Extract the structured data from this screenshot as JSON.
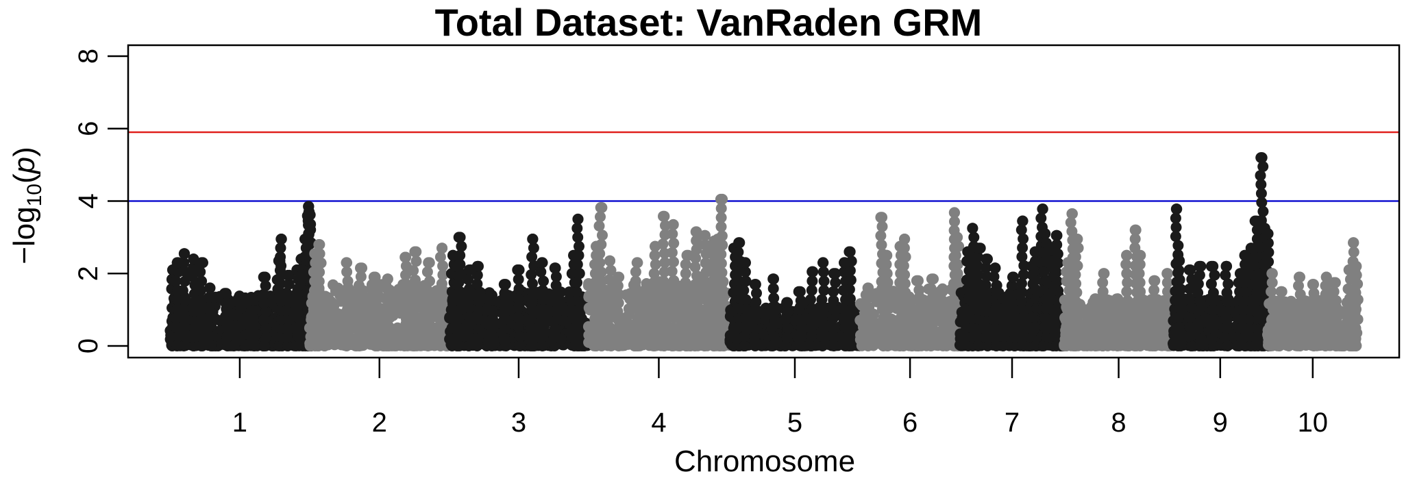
{
  "chart_data": {
    "type": "scatter",
    "title": "Total Dataset: VanRaden GRM",
    "xlabel": "Chromosome",
    "ylabel_prefix": "−log",
    "ylabel_sub": "10",
    "ylabel_var": "p",
    "ylim": [
      0,
      8
    ],
    "yticks": [
      "0",
      "2",
      "4",
      "6",
      "8"
    ],
    "grid": false,
    "legend": "none",
    "thresholds": [
      {
        "value": 5.9,
        "color": "#e0201b"
      },
      {
        "value": 4.0,
        "color": "#1010d0"
      }
    ],
    "chromosomes": [
      {
        "label": "1",
        "color": "#1a1a1a",
        "start": 0.0,
        "end": 15.4,
        "baseline": 1.4,
        "peaks": [
          [
            0.3,
            2.1
          ],
          [
            0.8,
            2.3
          ],
          [
            1.6,
            2.55
          ],
          [
            2.6,
            2.4
          ],
          [
            3.5,
            2.3
          ],
          [
            4.4,
            1.6
          ],
          [
            6.2,
            1.45
          ],
          [
            7.2,
            0.85
          ],
          [
            9.3,
            1.25
          ],
          [
            10.5,
            1.9
          ],
          [
            12.0,
            2.35
          ],
          [
            12.3,
            2.95
          ],
          [
            13.0,
            1.95
          ],
          [
            14.0,
            2.1
          ],
          [
            14.5,
            2.4
          ],
          [
            15.0,
            2.95
          ],
          [
            15.3,
            3.85
          ],
          [
            15.35,
            3.7
          ],
          [
            15.4,
            3.62
          ]
        ]
      },
      {
        "label": "2",
        "color": "#808080",
        "start": 15.4,
        "end": 30.8,
        "baseline": 1.7,
        "peaks": [
          [
            16.0,
            2.55
          ],
          [
            16.5,
            2.8
          ],
          [
            19.5,
            2.3
          ],
          [
            21.0,
            2.15
          ],
          [
            22.5,
            1.9
          ],
          [
            24.0,
            1.85
          ],
          [
            26.0,
            2.45
          ],
          [
            27.0,
            2.6
          ],
          [
            28.5,
            2.3
          ],
          [
            30.0,
            2.7
          ]
        ]
      },
      {
        "label": "3",
        "color": "#1a1a1a",
        "start": 30.8,
        "end": 46.1,
        "baseline": 1.5,
        "peaks": [
          [
            31.2,
            2.5
          ],
          [
            31.6,
            2.2
          ],
          [
            32.0,
            3.0
          ],
          [
            33.0,
            2.1
          ],
          [
            34.0,
            2.2
          ],
          [
            35.5,
            1.25
          ],
          [
            37.0,
            1.7
          ],
          [
            38.5,
            2.1
          ],
          [
            40.0,
            2.95
          ],
          [
            41.0,
            2.3
          ],
          [
            42.5,
            2.15
          ],
          [
            44.5,
            2.5
          ],
          [
            45.0,
            3.5
          ]
        ]
      },
      {
        "label": "4",
        "color": "#808080",
        "start": 46.1,
        "end": 61.7,
        "baseline": 1.8,
        "peaks": [
          [
            47.0,
            2.75
          ],
          [
            47.5,
            3.82
          ],
          [
            48.5,
            2.35
          ],
          [
            49.5,
            1.9
          ],
          [
            51.5,
            2.3
          ],
          [
            53.5,
            2.75
          ],
          [
            54.5,
            3.58
          ],
          [
            55.5,
            3.35
          ],
          [
            57.0,
            2.5
          ],
          [
            58.0,
            3.15
          ],
          [
            59.0,
            3.05
          ],
          [
            60.0,
            2.9
          ],
          [
            60.5,
            2.95
          ],
          [
            60.9,
            4.05
          ]
        ]
      },
      {
        "label": "5",
        "color": "#1a1a1a",
        "start": 61.7,
        "end": 76.1,
        "baseline": 1.1,
        "peaks": [
          [
            62.2,
            2.7
          ],
          [
            62.8,
            2.85
          ],
          [
            63.4,
            2.3
          ],
          [
            64.5,
            1.7
          ],
          [
            66.5,
            1.85
          ],
          [
            68.0,
            1.2
          ],
          [
            69.5,
            1.5
          ],
          [
            70.8,
            2.05
          ],
          [
            72.0,
            2.3
          ],
          [
            73.2,
            2.0
          ],
          [
            74.4,
            2.3
          ],
          [
            75.0,
            2.6
          ]
        ]
      },
      {
        "label": "6",
        "color": "#808080",
        "start": 76.1,
        "end": 87.1,
        "baseline": 1.6,
        "peaks": [
          [
            77.0,
            1.6
          ],
          [
            78.5,
            3.55
          ],
          [
            79.0,
            2.5
          ],
          [
            80.5,
            2.75
          ],
          [
            81.0,
            2.95
          ],
          [
            82.5,
            1.8
          ],
          [
            84.0,
            1.85
          ],
          [
            86.5,
            3.68
          ],
          [
            86.8,
            3.0
          ]
        ]
      },
      {
        "label": "7",
        "color": "#1a1a1a",
        "start": 87.1,
        "end": 98.6,
        "baseline": 1.5,
        "peaks": [
          [
            88.0,
            2.6
          ],
          [
            88.5,
            3.25
          ],
          [
            89.2,
            2.7
          ],
          [
            90.0,
            2.4
          ],
          [
            91.0,
            2.15
          ],
          [
            92.0,
            1.3
          ],
          [
            93.0,
            1.9
          ],
          [
            94.0,
            3.45
          ],
          [
            95.0,
            2.2
          ],
          [
            95.5,
            2.6
          ],
          [
            96.2,
            3.78
          ],
          [
            96.5,
            3.1
          ],
          [
            97.3,
            2.65
          ],
          [
            97.8,
            3.05
          ]
        ]
      },
      {
        "label": "8",
        "color": "#808080",
        "start": 98.6,
        "end": 110.6,
        "baseline": 1.3,
        "peaks": [
          [
            99.0,
            2.3
          ],
          [
            99.5,
            3.65
          ],
          [
            100.0,
            2.95
          ],
          [
            102.0,
            1.3
          ],
          [
            103.0,
            2.0
          ],
          [
            104.5,
            1.3
          ],
          [
            105.5,
            2.5
          ],
          [
            106.5,
            3.2
          ],
          [
            107.0,
            2.5
          ],
          [
            108.5,
            1.8
          ],
          [
            110.0,
            2.0
          ]
        ]
      },
      {
        "label": "9",
        "color": "#1a1a1a",
        "start": 110.6,
        "end": 121.0,
        "baseline": 1.3,
        "peaks": [
          [
            111.0,
            3.78
          ],
          [
            111.3,
            2.35
          ],
          [
            112.5,
            2.1
          ],
          [
            113.5,
            2.2
          ],
          [
            115.0,
            2.2
          ],
          [
            116.5,
            2.2
          ],
          [
            118.0,
            2.0
          ],
          [
            118.5,
            2.5
          ],
          [
            119.2,
            2.7
          ],
          [
            119.8,
            3.45
          ],
          [
            120.0,
            3.2
          ],
          [
            120.4,
            5.2
          ],
          [
            120.7,
            3.25
          ],
          [
            121.0,
            3.1
          ]
        ]
      },
      {
        "label": "10",
        "color": "#808080",
        "start": 121.0,
        "end": 131.0,
        "baseline": 1.3,
        "peaks": [
          [
            121.5,
            2.0
          ],
          [
            122.5,
            1.5
          ],
          [
            124.5,
            1.9
          ],
          [
            126.0,
            1.7
          ],
          [
            127.5,
            1.9
          ],
          [
            128.5,
            1.75
          ],
          [
            130.0,
            2.1
          ],
          [
            130.5,
            2.85
          ],
          [
            130.8,
            2.2
          ]
        ]
      }
    ]
  }
}
